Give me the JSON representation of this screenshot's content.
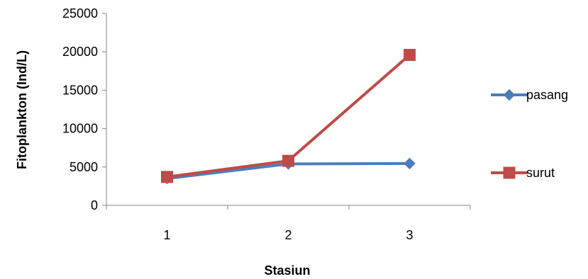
{
  "chart_data": {
    "type": "line",
    "categories": [
      "1",
      "2",
      "3"
    ],
    "series": [
      {
        "name": "pasang",
        "values": [
          3500,
          5400,
          5450
        ],
        "color": "#4A7EBB",
        "marker": "diamond"
      },
      {
        "name": "surut",
        "values": [
          3700,
          5800,
          19600
        ],
        "color": "#BE4B48",
        "marker": "square"
      }
    ],
    "xlabel": "Stasiun",
    "ylabel": "Fitoplankton (Ind/L)",
    "ylim": [
      0,
      25000
    ],
    "yticks": [
      "0",
      "5000",
      "10000",
      "15000",
      "20000",
      "25000"
    ],
    "grid": false,
    "legend_position": "right"
  }
}
